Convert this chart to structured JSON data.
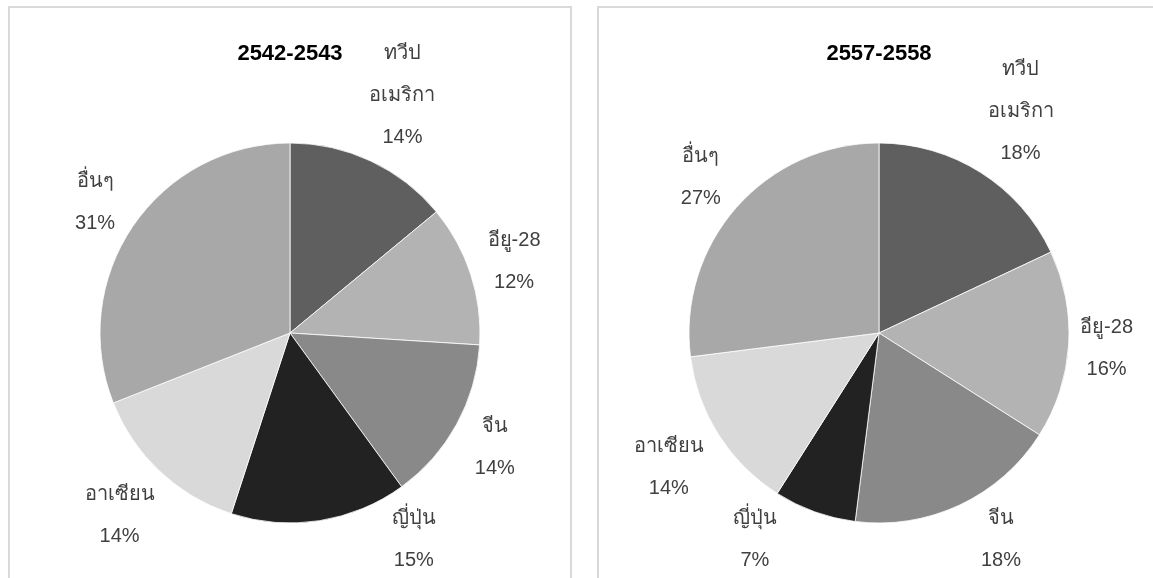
{
  "chart_data": [
    {
      "type": "pie",
      "title": "2542-2543",
      "categories": [
        "ทวีป อเมริกา",
        "อียู-28",
        "จีน",
        "ญี่ปุ่น",
        "อาเซียน",
        "อื่นๆ"
      ],
      "values": [
        14,
        12,
        14,
        15,
        14,
        31
      ],
      "colors": [
        "#5f5f5f",
        "#b3b3b3",
        "#898989",
        "#222222",
        "#d9d9d9",
        "#a8a8a8"
      ],
      "value_labels": [
        "14%",
        "12%",
        "14%",
        "15%",
        "14%",
        "31%"
      ]
    },
    {
      "type": "pie",
      "title": "2557-2558",
      "categories": [
        "ทวีป อเมริกา",
        "อียู-28",
        "จีน",
        "ญี่ปุ่น",
        "อาเซียน",
        "อื่นๆ"
      ],
      "values": [
        18,
        16,
        18,
        7,
        14,
        27
      ],
      "colors": [
        "#5f5f5f",
        "#b3b3b3",
        "#898989",
        "#222222",
        "#d9d9d9",
        "#a8a8a8"
      ],
      "value_labels": [
        "18%",
        "16%",
        "18%",
        "7%",
        "14%",
        "27%"
      ]
    }
  ]
}
